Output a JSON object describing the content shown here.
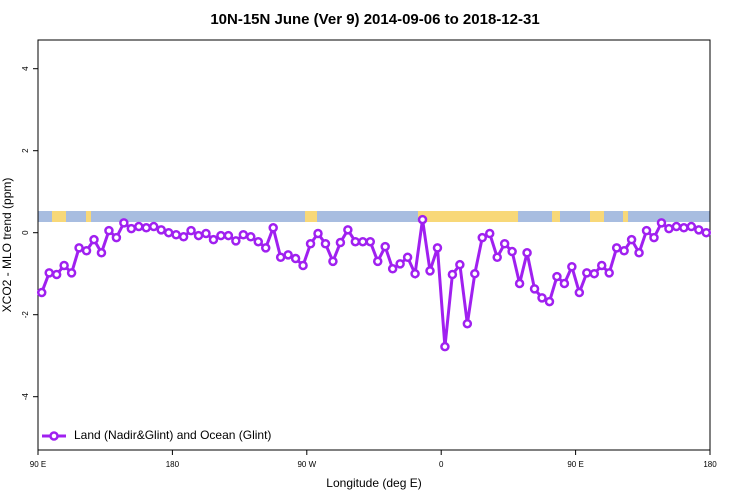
{
  "chart_data": {
    "type": "line",
    "title": "10N-15N June (Ver 9)   2014-09-06 to 2018-12-31",
    "x_label": "Longitude (deg E)",
    "y_label": "XCO2 - MLO trend (ppm)",
    "x": [
      92.5,
      97.5,
      102.5,
      107.5,
      112.5,
      117.5,
      122.5,
      127.5,
      132.5,
      137.5,
      142.5,
      147.5,
      152.5,
      157.5,
      162.5,
      167.5,
      172.5,
      177.5,
      182.5,
      187.5,
      192.5,
      197.5,
      202.5,
      207.5,
      212.5,
      217.5,
      222.5,
      227.5,
      232.5,
      237.5,
      242.5,
      247.5,
      252.5,
      257.5,
      262.5,
      267.5,
      272.5,
      277.5,
      282.5,
      287.5,
      292.5,
      297.5,
      302.5,
      307.5,
      312.5,
      317.5,
      322.5,
      327.5,
      332.5,
      337.5,
      342.5,
      347.5,
      352.5,
      357.5,
      362.5,
      367.5,
      372.5,
      377.5,
      382.5,
      387.5,
      392.5,
      397.5,
      402.5,
      407.5,
      412.5,
      417.5,
      422.5,
      427.5,
      432.5,
      437.5,
      442.5,
      447.5,
      452.5,
      457.5,
      462.5,
      467.5,
      472.5,
      477.5,
      482.5,
      487.5,
      492.5,
      497.5,
      502.5,
      507.5,
      512.5,
      517.5,
      522.5,
      527.5,
      532.5,
      537.5
    ],
    "series": [
      {
        "name": "Land (Nadir&Glint) and Ocean (Glint)",
        "color": "#a020f0",
        "values": [
          -1.46,
          -0.98,
          -1.02,
          -0.8,
          -0.98,
          -0.37,
          -0.44,
          -0.17,
          -0.49,
          0.05,
          -0.12,
          0.24,
          0.1,
          0.15,
          0.12,
          0.15,
          0.07,
          0,
          -0.05,
          -0.1,
          0.05,
          -0.07,
          -0.02,
          -0.17,
          -0.07,
          -0.07,
          -0.2,
          -0.05,
          -0.1,
          -0.22,
          -0.37,
          0.12,
          -0.6,
          -0.54,
          -0.63,
          -0.8,
          -0.27,
          -0.02,
          -0.27,
          -0.7,
          -0.24,
          0.07,
          -0.22,
          -0.22,
          -0.22,
          -0.7,
          -0.34,
          -0.88,
          -0.76,
          -0.6,
          -1.0,
          0.32,
          -0.93,
          -0.37,
          -2.78,
          -1.02,
          -0.78,
          -2.22,
          -1.0,
          -0.12,
          -0.02,
          -0.6,
          -0.27,
          -0.46,
          -1.24,
          -0.49,
          -1.37,
          -1.59,
          -1.68,
          -1.07,
          -1.24,
          -0.83,
          -1.46,
          -0.98,
          -1.0,
          -0.8,
          -0.98,
          -0.37,
          -0.44,
          -0.17,
          -0.49,
          0.05,
          -0.12,
          0.24,
          0.1,
          0.15,
          0.12,
          0.15,
          0.07,
          0
        ]
      }
    ],
    "xlim": [
      90,
      540
    ],
    "xticks": [
      {
        "value": 90,
        "label": "90 E"
      },
      180,
      {
        "value": 270,
        "label": "90 W"
      },
      {
        "value": 360,
        "label": "0"
      },
      {
        "value": 450,
        "label": "90 E"
      },
      {
        "value": 540,
        "label": "180"
      }
    ],
    "ylim": [
      -5.3,
      4.7
    ],
    "yticks": [
      -4,
      -2,
      0,
      2,
      4
    ],
    "legend": "bottom-left"
  }
}
